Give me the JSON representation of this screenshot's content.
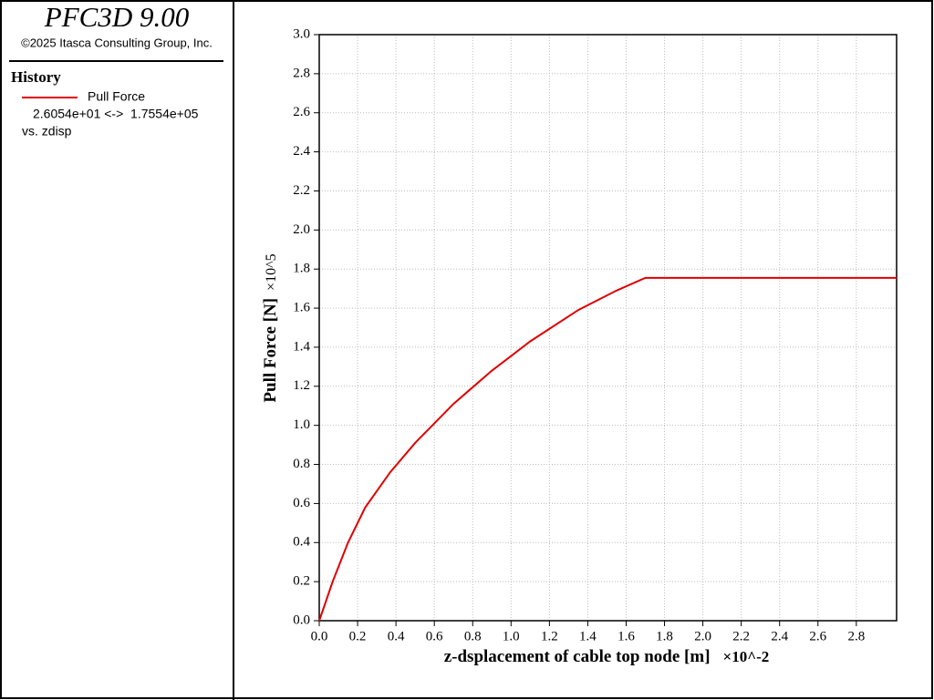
{
  "panel": {
    "title": "PFC3D 9.00",
    "copyright": "©2025 Itasca Consulting Group, Inc.",
    "section": "History",
    "range": "2.6054e+01 <->  1.7554e+05",
    "versus": "vs. zdisp"
  },
  "chart_data": {
    "type": "line",
    "x_label": "z-dsplacement of cable top node [m]",
    "x_multiplier": "×10^-2",
    "y_label": "Pull Force [N]",
    "y_multiplier": "×10^5",
    "x": [
      0,
      0.07,
      0.15,
      0.24,
      0.37,
      0.5,
      0.7,
      0.9,
      1.1,
      1.35,
      1.55,
      1.7,
      3.01
    ],
    "series": [
      {
        "name": "Pull Force",
        "color": "#e00000",
        "values": [
          0,
          0.2,
          0.4,
          0.58,
          0.76,
          0.91,
          1.11,
          1.28,
          1.43,
          1.59,
          1.69,
          1.755,
          1.755
        ]
      }
    ],
    "xlim": [
      0,
      3.01
    ],
    "xticks": [
      {
        "value": 0,
        "label": "0.0"
      },
      0.2,
      0.4,
      0.6,
      0.8,
      {
        "value": 1,
        "label": "1.0"
      },
      1.2,
      1.4,
      1.6,
      1.8,
      {
        "value": 2,
        "label": "2.0"
      },
      2.2,
      2.4,
      2.6,
      2.8
    ],
    "ylim": [
      0,
      3
    ],
    "yticks": [
      {
        "value": 0,
        "label": "0.0"
      },
      0.2,
      0.4,
      0.6,
      0.8,
      {
        "value": 1,
        "label": "1.0"
      },
      1.2,
      1.4,
      1.6,
      1.8,
      {
        "value": 2,
        "label": "2.0"
      },
      2.2,
      2.4,
      2.6,
      2.8,
      {
        "value": 3,
        "label": "3.0"
      }
    ],
    "grid": true
  }
}
